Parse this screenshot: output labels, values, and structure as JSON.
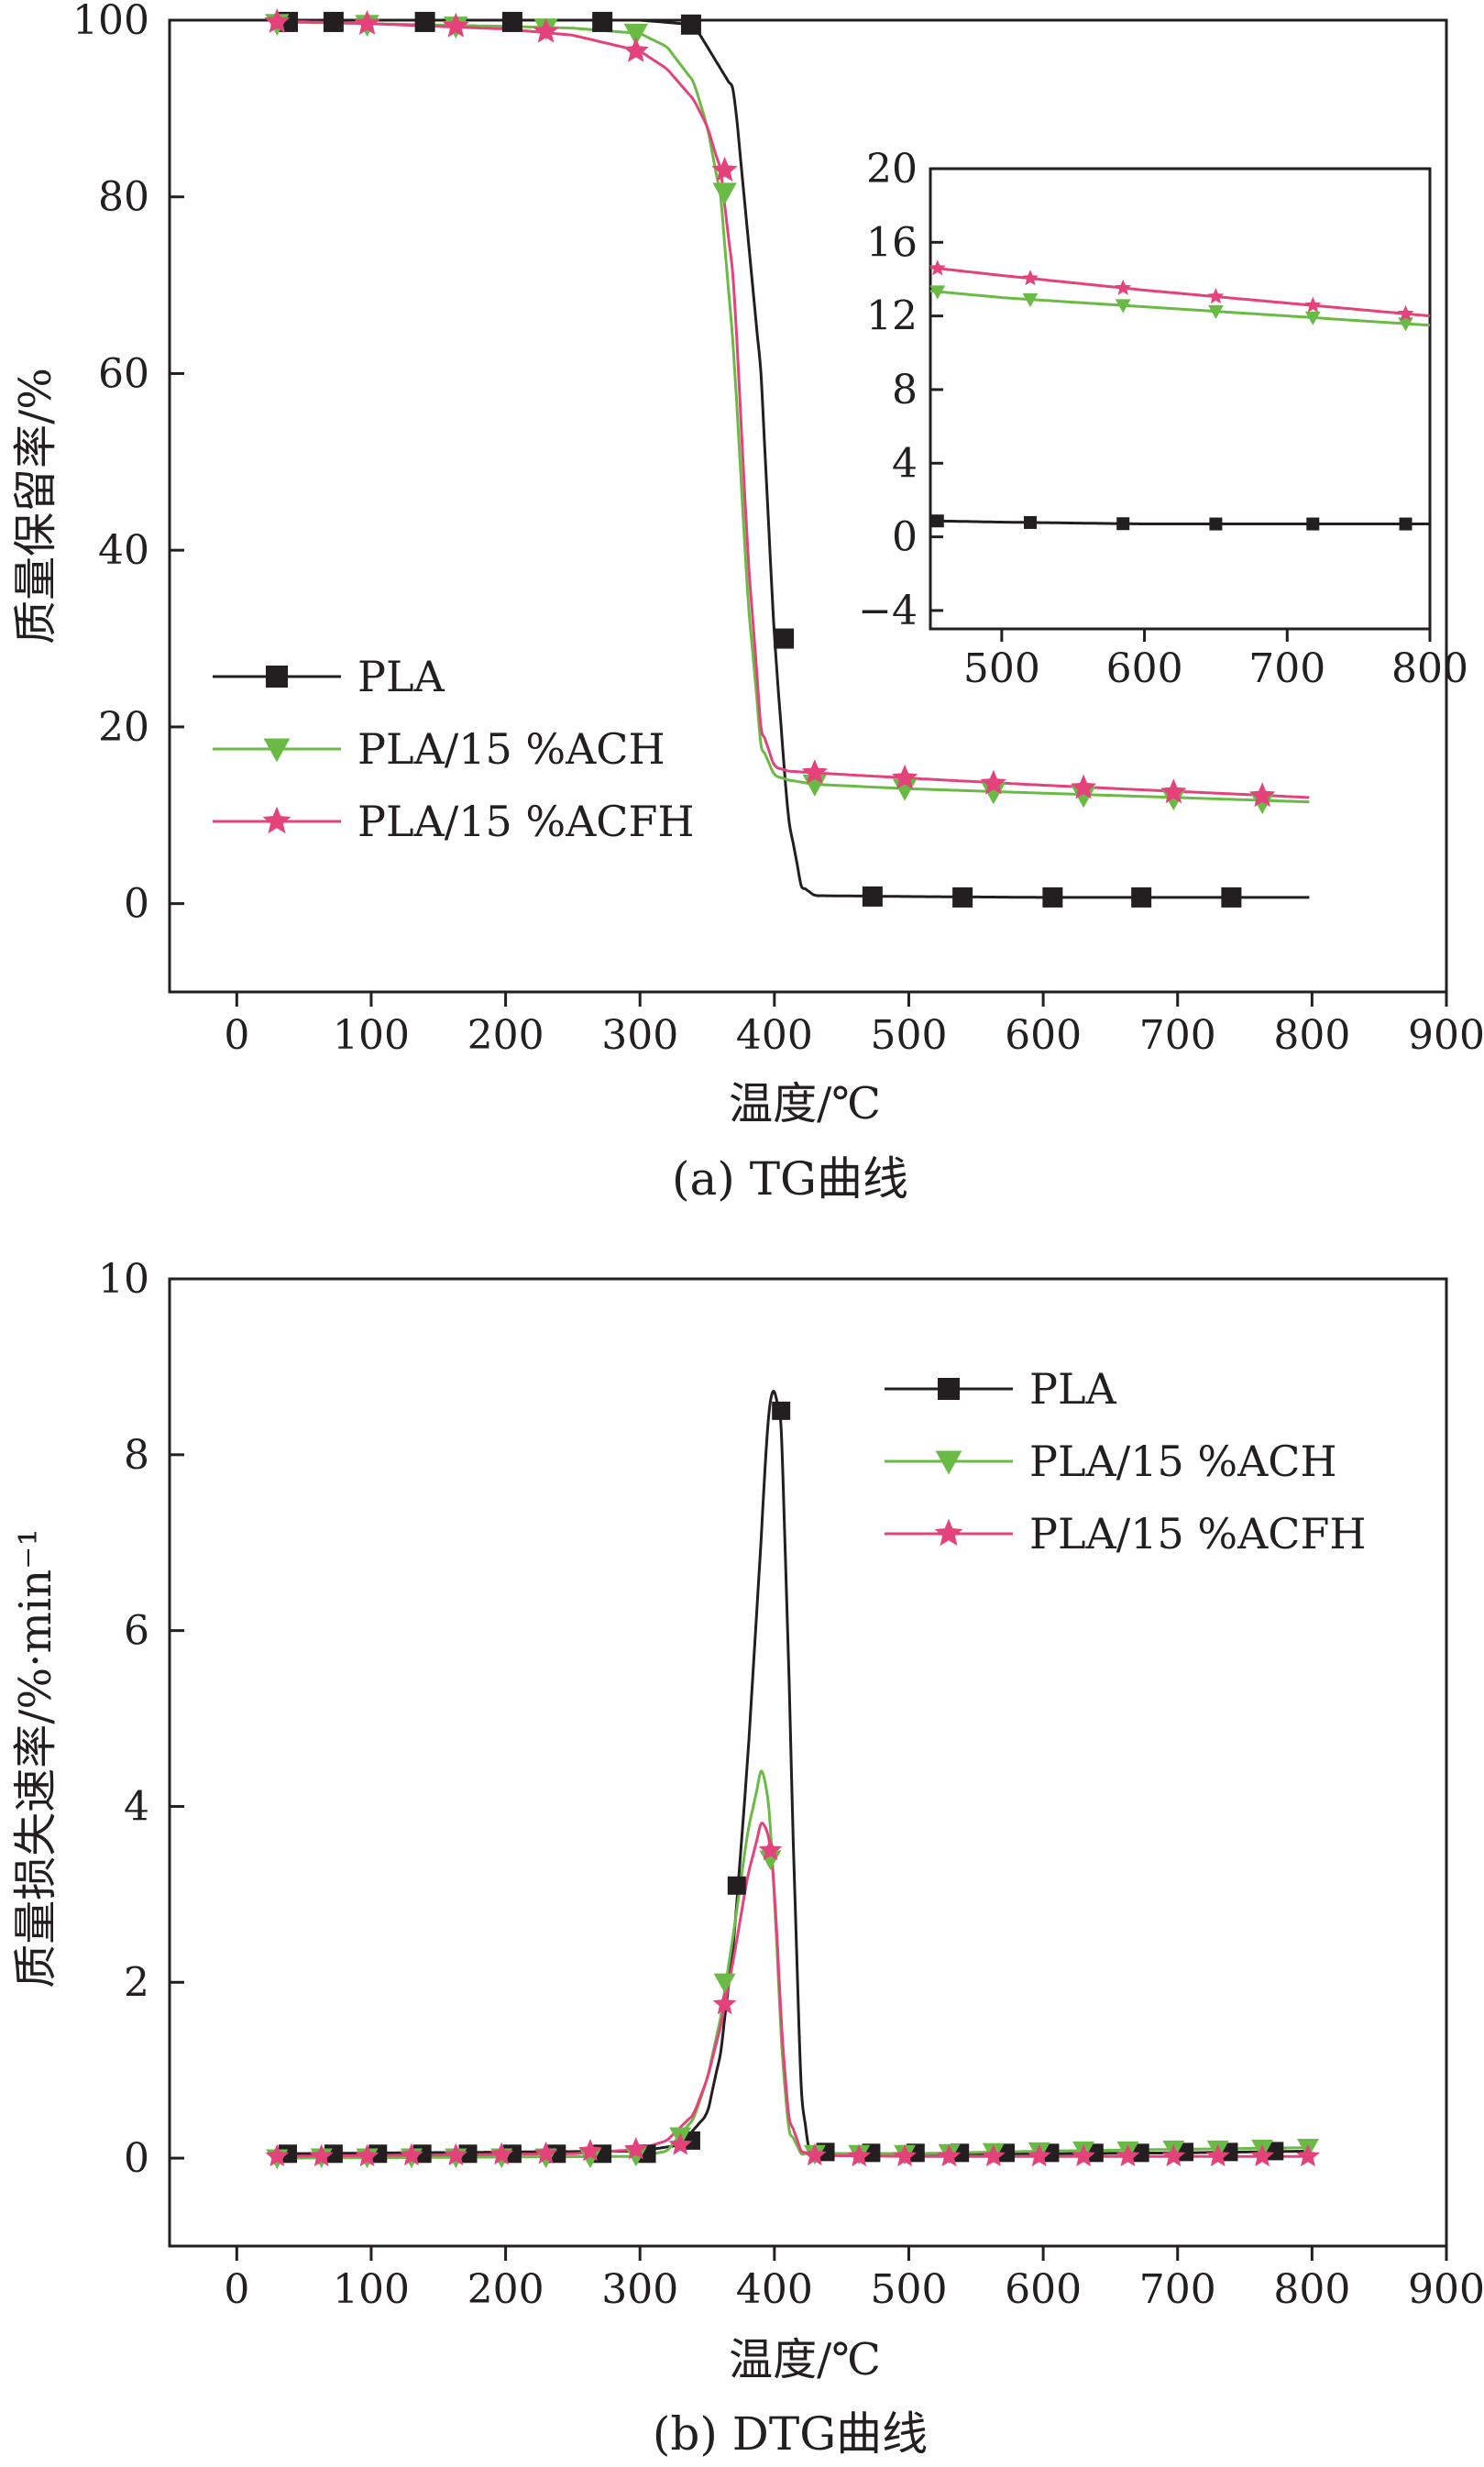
{
  "chart_data": [
    {
      "type": "line",
      "id": "tg",
      "caption": "(a) TG曲线",
      "xlabel": "温度/℃",
      "ylabel": "质量保留率/%",
      "xlim": [
        -50,
        900
      ],
      "ylim": [
        -10,
        100
      ],
      "xticks": [
        0,
        100,
        200,
        300,
        400,
        500,
        600,
        700,
        800,
        900
      ],
      "yticks": [
        0,
        20,
        40,
        60,
        80,
        100
      ],
      "legend_position": "left",
      "series": [
        {
          "name": "PLA",
          "color": "#231f20",
          "marker": "square",
          "x": [
            30,
            100,
            200,
            300,
            340,
            370,
            390,
            400,
            410,
            420,
            430,
            500,
            600,
            700,
            800
          ],
          "y": [
            100,
            100,
            100,
            100,
            99.5,
            92,
            60,
            30,
            10,
            2,
            0.9,
            0.8,
            0.7,
            0.7,
            0.7
          ],
          "marker_x": [
            38,
            72,
            140,
            205,
            272,
            338,
            407,
            473,
            540,
            607,
            673,
            740
          ],
          "marker_y": [
            99.8,
            99.8,
            99.8,
            99.8,
            99.8,
            99.5,
            30,
            0.8,
            0.7,
            0.7,
            0.7,
            0.7
          ]
        },
        {
          "name": "PLA/15 %ACH",
          "color": "#6abb45",
          "marker": "triangle-down",
          "x": [
            30,
            100,
            200,
            250,
            300,
            320,
            340,
            350,
            360,
            370,
            380,
            390,
            400,
            410,
            430,
            500,
            600,
            700,
            800
          ],
          "y": [
            99.8,
            99.6,
            99.3,
            99.1,
            98.5,
            97,
            93,
            88,
            80,
            62,
            35,
            18,
            14.5,
            14,
            13.5,
            13,
            12.5,
            12,
            11.5
          ],
          "marker_x": [
            30,
            97,
            163,
            230,
            297,
            363,
            430,
            497,
            563,
            630,
            697,
            763
          ],
          "marker_y": [
            99.6,
            99.5,
            99.3,
            99.1,
            98.5,
            80.5,
            13.5,
            13.0,
            12.6,
            12.2,
            11.9,
            11.5
          ]
        },
        {
          "name": "PLA/15 %ACFH",
          "color": "#e3437a",
          "marker": "star",
          "x": [
            30,
            100,
            200,
            250,
            300,
            320,
            340,
            350,
            360,
            370,
            380,
            390,
            400,
            410,
            430,
            500,
            600,
            700,
            800
          ],
          "y": [
            99.9,
            99.6,
            99,
            98.3,
            96.5,
            94.5,
            91,
            88,
            83,
            70,
            40,
            20,
            15.5,
            15,
            14.8,
            14.2,
            13.4,
            12.7,
            12
          ],
          "marker_x": [
            30,
            97,
            163,
            230,
            297,
            363,
            430,
            497,
            563,
            630,
            697,
            763
          ],
          "marker_y": [
            99.8,
            99.6,
            99.3,
            98.7,
            96.5,
            83,
            14.8,
            14.2,
            13.6,
            13.1,
            12.6,
            12.2
          ]
        }
      ],
      "inset": {
        "xlim": [
          450,
          800
        ],
        "ylim": [
          -5,
          20
        ],
        "xticks": [
          500,
          600,
          700,
          800
        ],
        "yticks": [
          -4,
          0,
          4,
          8,
          12,
          16,
          20
        ],
        "marker_x": [
          455,
          520,
          585,
          650,
          718,
          783
        ]
      }
    },
    {
      "type": "line",
      "id": "dtg",
      "caption": "(b) DTG曲线",
      "xlabel": "温度/℃",
      "ylabel": "质量损失速率/%·min⁻¹",
      "xlim": [
        -50,
        900
      ],
      "ylim": [
        -1,
        10
      ],
      "xticks": [
        0,
        100,
        200,
        300,
        400,
        500,
        600,
        700,
        800,
        900
      ],
      "yticks": [
        0,
        2,
        4,
        6,
        8,
        10
      ],
      "legend_position": "top-right",
      "series": [
        {
          "name": "PLA",
          "color": "#231f20",
          "marker": "square",
          "x": [
            30,
            300,
            330,
            350,
            360,
            370,
            380,
            390,
            395,
            400,
            405,
            410,
            415,
            420,
            425,
            430,
            500,
            600,
            700,
            800
          ],
          "y": [
            0.05,
            0.08,
            0.15,
            0.5,
            1.2,
            2.5,
            4.5,
            7.0,
            8.4,
            8.8,
            8.3,
            6.0,
            3.0,
            0.8,
            0.1,
            0.05,
            0.05,
            0.05,
            0.06,
            0.08
          ],
          "marker_x": [
            38,
            72,
            105,
            138,
            172,
            205,
            238,
            272,
            305,
            338,
            372,
            405,
            438,
            472,
            505,
            538,
            572,
            605,
            638,
            672,
            705,
            738,
            772
          ],
          "marker_y": [
            0.05,
            0.05,
            0.05,
            0.05,
            0.05,
            0.05,
            0.05,
            0.05,
            0.05,
            0.2,
            3.1,
            8.5,
            0.07,
            0.06,
            0.06,
            0.06,
            0.06,
            0.06,
            0.06,
            0.06,
            0.07,
            0.07,
            0.08
          ]
        },
        {
          "name": "PLA/15 %ACH",
          "color": "#6abb45",
          "marker": "triangle-down",
          "x": [
            30,
            300,
            320,
            340,
            350,
            360,
            370,
            380,
            390,
            395,
            400,
            405,
            410,
            420,
            430,
            500,
            600,
            700,
            800
          ],
          "y": [
            0,
            0.02,
            0.08,
            0.45,
            0.9,
            1.6,
            2.6,
            3.7,
            4.4,
            4.2,
            3.0,
            1.4,
            0.35,
            0.05,
            0.05,
            0.05,
            0.08,
            0.1,
            0.12
          ],
          "marker_x": [
            30,
            63,
            97,
            130,
            163,
            197,
            230,
            263,
            297,
            330,
            363,
            397,
            430,
            463,
            497,
            530,
            563,
            597,
            630,
            663,
            697,
            730,
            763,
            797
          ],
          "marker_y": [
            0,
            0.01,
            0.01,
            0.01,
            0.01,
            0.01,
            0.01,
            0.01,
            0.03,
            0.25,
            2.0,
            3.4,
            0.05,
            0.05,
            0.05,
            0.06,
            0.07,
            0.08,
            0.09,
            0.09,
            0.1,
            0.1,
            0.11,
            0.12
          ]
        },
        {
          "name": "PLA/15 %ACFH",
          "color": "#e3437a",
          "marker": "star",
          "x": [
            30,
            250,
            300,
            320,
            340,
            350,
            360,
            370,
            380,
            390,
            395,
            400,
            405,
            410,
            420,
            430,
            500,
            600,
            700,
            800
          ],
          "y": [
            0.02,
            0.05,
            0.1,
            0.2,
            0.5,
            0.9,
            1.5,
            2.3,
            3.2,
            3.8,
            3.75,
            3.1,
            1.6,
            0.5,
            0.08,
            0.03,
            0.02,
            0.02,
            0.02,
            0.02
          ],
          "marker_x": [
            30,
            63,
            97,
            130,
            163,
            197,
            230,
            263,
            297,
            330,
            363,
            397,
            430,
            463,
            497,
            530,
            563,
            597,
            630,
            663,
            697,
            730,
            763,
            797
          ],
          "marker_y": [
            0.02,
            0.02,
            0.02,
            0.03,
            0.03,
            0.04,
            0.05,
            0.08,
            0.1,
            0.15,
            1.75,
            3.5,
            0.03,
            0.02,
            0.02,
            0.02,
            0.02,
            0.02,
            0.02,
            0.02,
            0.02,
            0.02,
            0.02,
            0.02
          ]
        }
      ]
    }
  ]
}
